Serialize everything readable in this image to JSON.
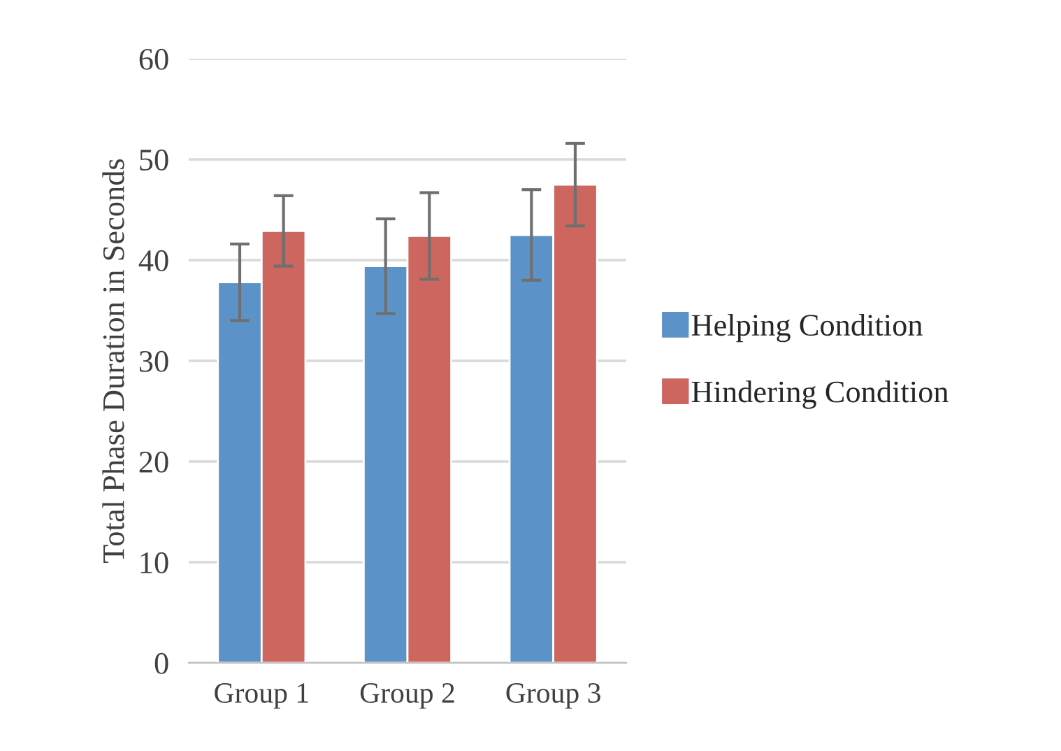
{
  "chart_data": {
    "type": "bar",
    "ylabel": "Total Phase Duration in Seconds",
    "categories": [
      "Group 1",
      "Group 2",
      "Group 3"
    ],
    "series": [
      {
        "name": "Helping Condition",
        "color": "#5b93c8",
        "values": [
          37.8,
          39.4,
          42.5
        ],
        "errors": [
          3.8,
          4.7,
          4.5
        ]
      },
      {
        "name": "Hindering Condition",
        "color": "#cc665e",
        "values": [
          42.9,
          42.4,
          47.5
        ],
        "errors": [
          3.5,
          4.3,
          4.1
        ]
      }
    ],
    "ylim": [
      0,
      60
    ],
    "yticks": [
      0,
      10,
      20,
      30,
      40,
      50,
      60
    ],
    "grid": "y",
    "legend": "right"
  }
}
